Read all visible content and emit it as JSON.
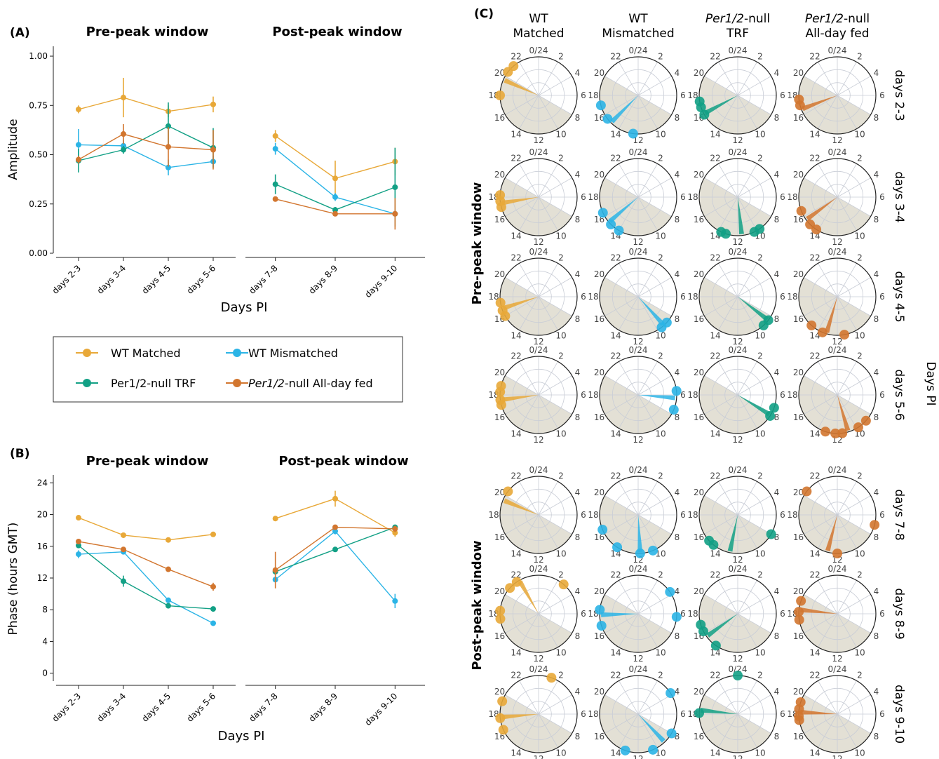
{
  "figure": {
    "panel_labels": {
      "a": "(A)",
      "b": "(B)",
      "c": "(C)"
    },
    "legend": {
      "items": [
        {
          "label": "WT Matched",
          "color": "#E8A838"
        },
        {
          "label": "WT Mismatched",
          "color": "#2BB4E6"
        },
        {
          "label": "Per1/2-null TRF",
          "color": "#12A085"
        },
        {
          "label_italic": "Per1/2",
          "label_rest": "-null All-day fed",
          "color": "#D2762F"
        }
      ]
    }
  },
  "chart_data": [
    {
      "id": "A",
      "type": "line",
      "panels": [
        "Pre-peak window",
        "Post-peak window"
      ],
      "ylabel": "Amplitude",
      "xlabel": "Days PI",
      "ylim": [
        0,
        1.05
      ],
      "yticks": [
        "0.00",
        "0.25",
        "0.50",
        "0.75",
        "1.00"
      ],
      "ytick_values": [
        0,
        0.25,
        0.5,
        0.75,
        1.0
      ],
      "categories_pre": [
        "days 2-3",
        "days 3-4",
        "days 4-5",
        "days 5-6"
      ],
      "categories_post": [
        "days 7-8",
        "days 8-9",
        "days 9-10"
      ],
      "series": [
        {
          "name": "WT Matched",
          "color": "#E8A838",
          "pre": [
            0.73,
            0.79,
            0.72,
            0.755
          ],
          "pre_err": [
            0.02,
            0.1,
            0.03,
            0.04
          ],
          "post": [
            0.595,
            0.38,
            0.465
          ],
          "post_err": [
            0.03,
            0.09,
            0.07
          ]
        },
        {
          "name": "WT Mismatched",
          "color": "#2BB4E6",
          "pre": [
            0.55,
            0.545,
            0.435,
            0.465
          ],
          "pre_err": [
            0.08,
            0.03,
            0.04,
            0.03
          ],
          "post": [
            0.53,
            0.285,
            0.2
          ],
          "post_err": [
            0.03,
            0.02,
            0.0
          ]
        },
        {
          "name": "Per1/2-null TRF",
          "color": "#12A085",
          "pre": [
            0.47,
            0.525,
            0.645,
            0.535
          ],
          "pre_err": [
            0.06,
            0.02,
            0.12,
            0.1
          ],
          "post": [
            0.35,
            0.22,
            0.335
          ],
          "post_err": [
            0.05,
            0.015,
            0.2
          ]
        },
        {
          "name": "Per1/2-null All-day fed",
          "color": "#D2762F",
          "pre": [
            0.475,
            0.605,
            0.54,
            0.525
          ],
          "pre_err": [
            0.02,
            0.05,
            0.1,
            0.1
          ],
          "post": [
            0.275,
            0.2,
            0.2
          ],
          "post_err": [
            0.01,
            0.0,
            0.08
          ]
        }
      ]
    },
    {
      "id": "B",
      "type": "line",
      "panels": [
        "Pre-peak window",
        "Post-peak window"
      ],
      "ylabel": "Phase (hours GMT)",
      "xlabel": "Days PI",
      "ylim": [
        -1,
        25
      ],
      "yticks": [
        "0",
        "4",
        "8",
        "12",
        "16",
        "20",
        "24"
      ],
      "ytick_values": [
        0,
        4,
        8,
        12,
        16,
        20,
        24
      ],
      "categories_pre": [
        "days 2-3",
        "days 3-4",
        "days 4-5",
        "days 5-6"
      ],
      "categories_post": [
        "days 7-8",
        "days 8-9",
        "days 9-10"
      ],
      "series": [
        {
          "name": "WT Matched",
          "color": "#E8A838",
          "pre": [
            19.6,
            17.4,
            16.8,
            17.5
          ],
          "pre_err": [
            0.2,
            0.2,
            0.2,
            0.2
          ],
          "post": [
            19.5,
            22.0,
            17.7
          ],
          "post_err": [
            0.2,
            1.0,
            0.5
          ]
        },
        {
          "name": "WT Mismatched",
          "color": "#2BB4E6",
          "pre": [
            15.0,
            15.3,
            9.2,
            6.3
          ],
          "pre_err": [
            0.5,
            0.3,
            0.3,
            0.2
          ],
          "post": [
            11.8,
            17.9,
            9.1
          ],
          "post_err": [
            0.3,
            0.4,
            0.9
          ]
        },
        {
          "name": "Per1/2-null TRF",
          "color": "#12A085",
          "pre": [
            16.1,
            11.6,
            8.5,
            8.1
          ],
          "pre_err": [
            0.3,
            0.7,
            0.2,
            0.2
          ],
          "post": [
            12.8,
            15.6,
            18.4
          ],
          "post_err": [
            0.4,
            0.2,
            0.2
          ]
        },
        {
          "name": "Per1/2-null All-day fed",
          "color": "#D2762F",
          "pre": [
            16.6,
            15.6,
            13.1,
            10.9
          ],
          "pre_err": [
            0.2,
            0.2,
            0.2,
            0.5
          ],
          "post": [
            13.0,
            18.4,
            18.2
          ],
          "post_err": [
            2.3,
            0.3,
            0.4
          ]
        }
      ]
    },
    {
      "id": "C",
      "type": "polar",
      "columns": [
        {
          "line1": "WT",
          "line2": "Matched",
          "italic1": false,
          "color": "#E8A838"
        },
        {
          "line1": "WT",
          "line2": "Mismatched",
          "italic1": false,
          "color": "#2BB4E6"
        },
        {
          "line1": "Per1/2",
          "line1_rest": "-null",
          "line2": "TRF",
          "italic1": true,
          "color": "#12A085"
        },
        {
          "line1": "Per1/2",
          "line1_rest": "-null",
          "line2": "All-day fed",
          "italic1": true,
          "color": "#D2762F"
        }
      ],
      "row_labels": [
        "days 2-3",
        "days 3-4",
        "days 4-5",
        "days 5-6",
        "days 7-8",
        "days 8-9",
        "days 9-10"
      ],
      "window_labels": [
        "Pre-peak window",
        "Post-peak window"
      ],
      "side_label": "Days PI",
      "clock_labels": [
        "0/24",
        "2",
        "4",
        "6",
        "8",
        "10",
        "12",
        "14",
        "16",
        "18",
        "20",
        "22"
      ],
      "shade_arc_hours": [
        [
          8,
          20
        ],
        [
          8,
          20
        ],
        [
          8,
          20
        ],
        [
          8,
          20
        ],
        [
          8,
          20
        ],
        [
          8,
          20
        ],
        [
          8,
          20
        ]
      ],
      "phases": [
        [
          [
            19.6,
            [
              18.0,
              20.5,
              21.3
            ]
          ],
          [
            15.0,
            [
              12.5,
              15.5,
              17.0
            ]
          ],
          [
            16.1,
            [
              16.0,
              16.8,
              17.4
            ]
          ],
          [
            16.6,
            [
              17.0,
              17.6
            ]
          ]
        ],
        [
          [
            17.4,
            [
              17.0,
              17.6,
              18.2
            ]
          ],
          [
            15.3,
            [
              14.0,
              15.0,
              16.4
            ]
          ],
          [
            11.6,
            [
              9.7,
              10.3,
              13.2,
              13.7
            ]
          ],
          [
            15.6,
            [
              14.2,
              15.0,
              16.6
            ]
          ]
        ],
        [
          [
            16.8,
            [
              16.0,
              16.6,
              17.4
            ]
          ],
          [
            9.2,
            [
              8.8,
              9.5
            ]
          ],
          [
            8.5,
            [
              8.5,
              9.2
            ]
          ],
          [
            13.1,
            [
              11.3,
              13.5,
              14.8
            ]
          ]
        ],
        [
          [
            17.5,
            [
              17.0,
              17.5,
              18.3,
              18.9
            ]
          ],
          [
            6.3,
            [
              5.6,
              7.5
            ]
          ],
          [
            8.1,
            [
              7.3,
              8.2
            ]
          ],
          [
            10.9,
            [
              8.8,
              9.8,
              11.5,
              12.2,
              13.2
            ]
          ]
        ],
        [
          [
            19.5,
            [
              20.5
            ]
          ],
          [
            11.8,
            [
              10.5,
              11.8,
              14.2,
              16.5
            ]
          ],
          [
            12.8,
            [
              8.0,
              14.6,
              15.2
            ]
          ],
          [
            13.0,
            [
              7.0,
              12.0,
              20.5
            ]
          ]
        ],
        [
          [
            22.0,
            [
              17.5,
              18.3,
              20.8,
              21.7,
              2.7
            ]
          ],
          [
            17.9,
            [
              16.8,
              18.4,
              3.7,
              6.3
            ]
          ],
          [
            15.6,
            [
              14.3,
              16.2,
              16.9
            ]
          ],
          [
            18.4,
            [
              17.4,
              19.3,
              18.2
            ]
          ]
        ],
        [
          [
            17.7,
            [
              16.4,
              17.6,
              19.3,
              1.3
            ]
          ],
          [
            9.1,
            [
              3.8,
              8.0,
              10.5,
              13.3
            ]
          ],
          [
            18.4,
            [
              18.1,
              0.0
            ]
          ],
          [
            18.2,
            [
              17.4,
              17.8,
              18.5,
              19.2
            ]
          ]
        ]
      ]
    }
  ]
}
